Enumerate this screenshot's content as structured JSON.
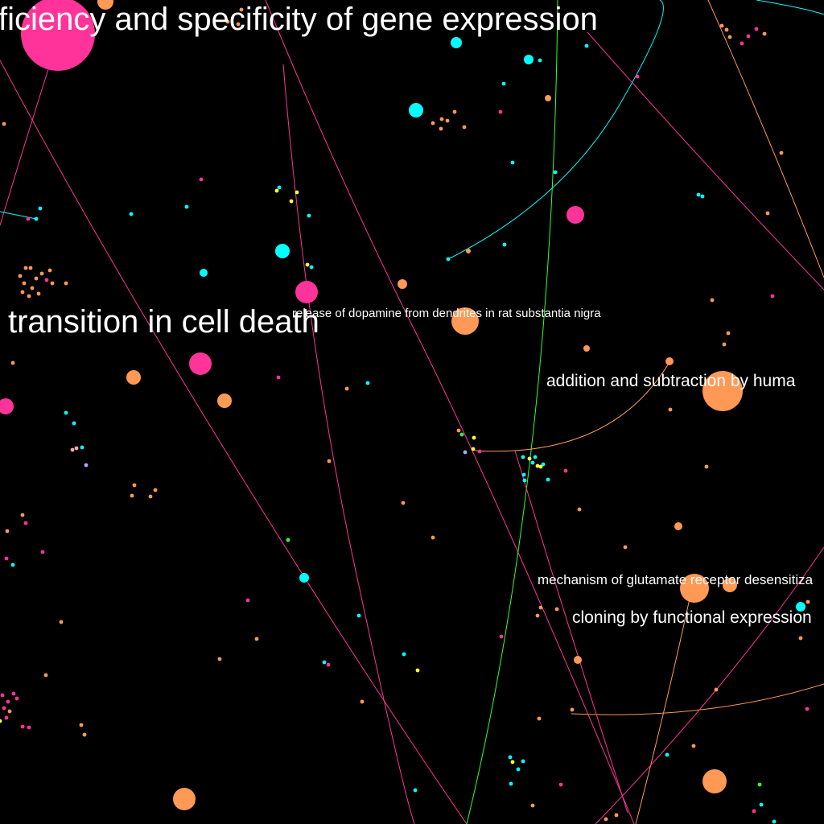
{
  "palette": {
    "background": "#000000",
    "magenta": "#ff3399",
    "orange": "#ff9955",
    "cyan": "#00ffff",
    "yellow": "#ffff33",
    "green": "#33ff33",
    "lilac": "#aaaaff",
    "pink": "#ffaaaa",
    "label": "#ffffff"
  },
  "labels": {
    "gene_expression": "ficiency and specificity of gene expression",
    "cell_death": "transition in cell death",
    "dopamine": "release of dopamine from dendrites in rat substantia nigra",
    "addition": "addition and subtraction by huma",
    "glutamate": "mechanism of glutamate receptor desensitiza",
    "cloning": "cloning by functional expression"
  }
}
